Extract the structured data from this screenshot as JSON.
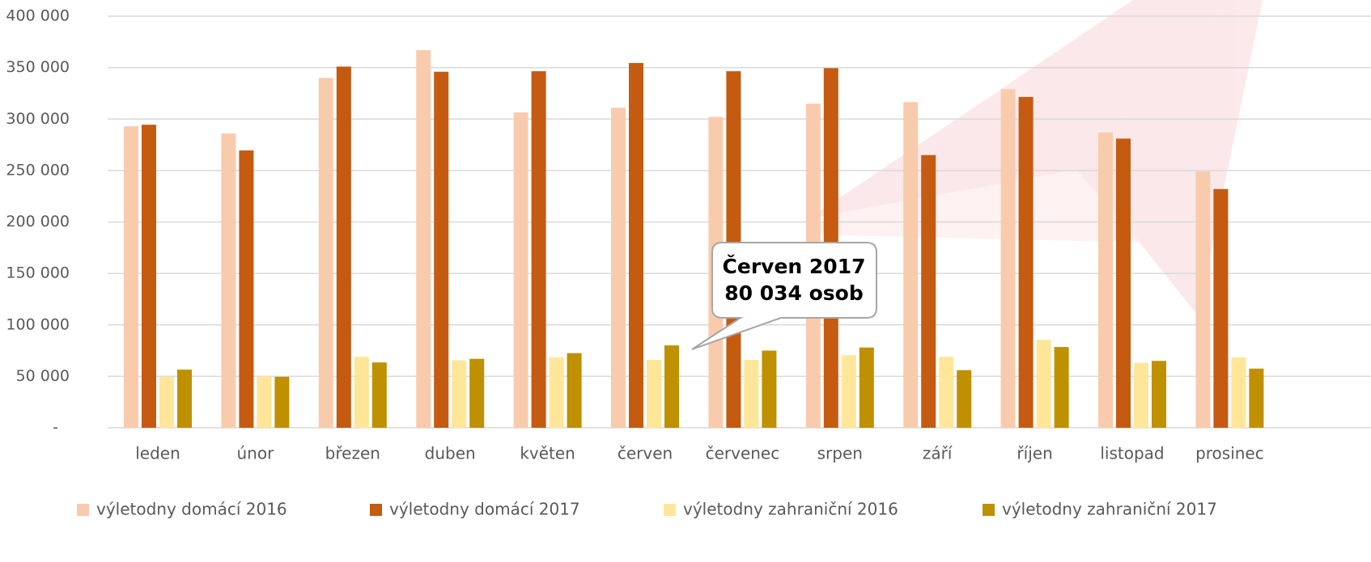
{
  "chart_data": {
    "type": "bar",
    "categories": [
      "leden",
      "únor",
      "březen",
      "duben",
      "květen",
      "červen",
      "červenec",
      "srpen",
      "září",
      "říjen",
      "listopad",
      "prosinec"
    ],
    "series": [
      {
        "name": "výletodny domácí 2016",
        "color": "#f8cbad",
        "values": [
          293000,
          286000,
          340000,
          367000,
          306500,
          311000,
          302000,
          315000,
          316500,
          329000,
          287000,
          249000
        ]
      },
      {
        "name": "výletodny domácí 2017",
        "color": "#c55a11",
        "values": [
          294500,
          269500,
          351000,
          346000,
          346500,
          354500,
          346500,
          349500,
          265000,
          321500,
          281000,
          232000
        ]
      },
      {
        "name": "výletodny zahraniční 2016",
        "color": "#ffe699",
        "values": [
          49500,
          50000,
          69000,
          65500,
          68500,
          66000,
          66000,
          70500,
          69000,
          85500,
          63000,
          68500
        ]
      },
      {
        "name": "výletodny zahraniční 2017",
        "color": "#bf9000",
        "values": [
          56500,
          49500,
          63500,
          67000,
          72500,
          80034,
          75000,
          78000,
          56000,
          78500,
          65000,
          57500
        ]
      }
    ],
    "ylim": [
      0,
      400000
    ],
    "yticks": [
      {
        "value": 0,
        "label": "-"
      },
      {
        "value": 50000,
        "label": "50 000"
      },
      {
        "value": 100000,
        "label": "100 000"
      },
      {
        "value": 150000,
        "label": "150 000"
      },
      {
        "value": 200000,
        "label": "200 000"
      },
      {
        "value": 250000,
        "label": "250 000"
      },
      {
        "value": 300000,
        "label": "300 000"
      },
      {
        "value": 350000,
        "label": "350 000"
      },
      {
        "value": 400000,
        "label": "400 000"
      }
    ],
    "grid": true,
    "legend": "bottom",
    "annotation": [
      "Červen 2017",
      "80 034 osob"
    ]
  }
}
